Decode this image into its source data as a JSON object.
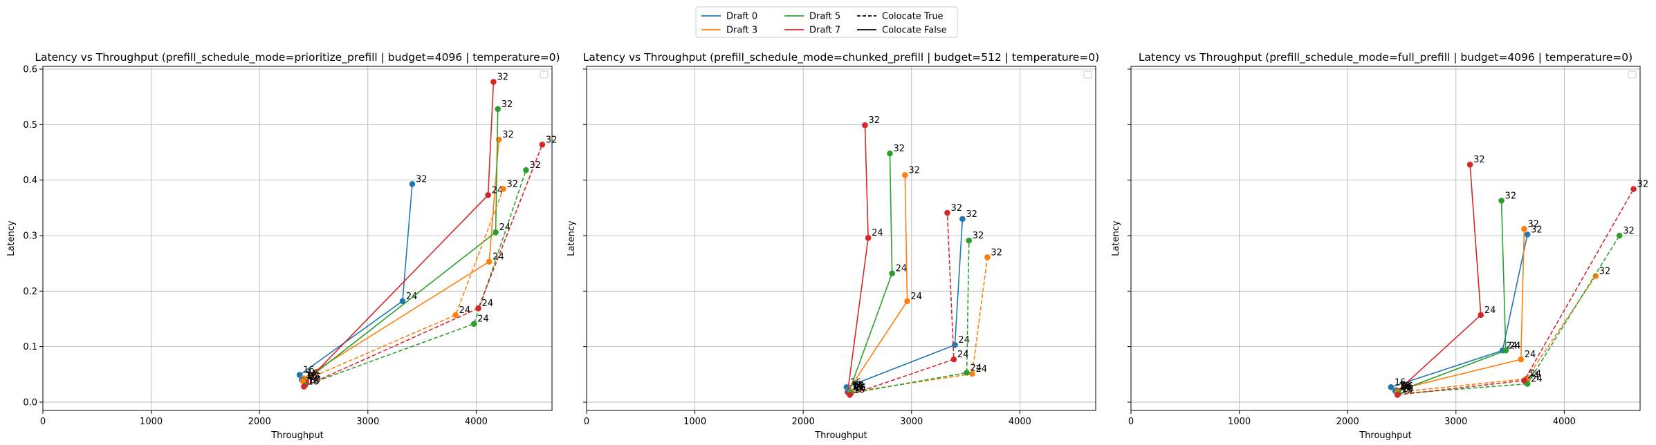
{
  "legend": {
    "position": "upper center",
    "entries": [
      {
        "label": "Draft 0",
        "color": "#1f77b4",
        "style": "solid"
      },
      {
        "label": "Draft 3",
        "color": "#ff7f0e",
        "style": "solid"
      },
      {
        "label": "Draft 5",
        "color": "#2ca02c",
        "style": "solid"
      },
      {
        "label": "Draft 7",
        "color": "#d62728",
        "style": "solid"
      },
      {
        "label": "Colocate True",
        "color": "#000000",
        "style": "dashed"
      },
      {
        "label": "Colocate False",
        "color": "#000000",
        "style": "solid"
      }
    ]
  },
  "colors": {
    "draft_0": "#1f77b4",
    "draft_3": "#ff7f0e",
    "draft_5": "#2ca02c",
    "draft_7": "#d62728",
    "grid": "#b0b0b0"
  },
  "chart_data": [
    {
      "type": "line",
      "title": "Latency vs Throughput (prefill_schedule_mode=prioritize_prefill | budget=4096 | temperature=0)",
      "xlabel": "Throughput",
      "ylabel": "Latency",
      "xlim": [
        0,
        4700
      ],
      "ylim": [
        -0.015,
        0.605
      ],
      "xticks": [
        "0",
        "1000",
        "2000",
        "3000",
        "4000"
      ],
      "yticks": [
        "0.0",
        "0.1",
        "0.2",
        "0.3",
        "0.4",
        "0.5",
        "0.6"
      ],
      "grid": true,
      "series": [
        {
          "draft": 0,
          "colocate": false,
          "x": [
            2370,
            3320,
            3410
          ],
          "y": [
            0.049,
            0.182,
            0.393
          ],
          "labels": [
            "16",
            "24",
            "32"
          ]
        },
        {
          "draft": 3,
          "colocate": false,
          "x": [
            2405,
            4120,
            4210
          ],
          "y": [
            0.043,
            0.253,
            0.473
          ],
          "labels": [
            "16",
            "24",
            "32"
          ]
        },
        {
          "draft": 5,
          "colocate": false,
          "x": [
            2420,
            4180,
            4200
          ],
          "y": [
            0.038,
            0.306,
            0.528
          ],
          "labels": [
            "16",
            "24",
            "32"
          ]
        },
        {
          "draft": 7,
          "colocate": false,
          "x": [
            2430,
            4110,
            4160
          ],
          "y": [
            0.036,
            0.373,
            0.577
          ],
          "labels": [
            "16",
            "24",
            "32"
          ]
        },
        {
          "draft": 0,
          "colocate": true,
          "x": [
            2390
          ],
          "y": [
            0.04
          ],
          "labels": [
            "16"
          ]
        },
        {
          "draft": 3,
          "colocate": true,
          "x": [
            2400,
            3810,
            4250
          ],
          "y": [
            0.038,
            0.157,
            0.384
          ],
          "labels": [
            "16",
            "24",
            "32"
          ]
        },
        {
          "draft": 5,
          "colocate": true,
          "x": [
            2420,
            3980,
            4460
          ],
          "y": [
            0.03,
            0.141,
            0.418
          ],
          "labels": [
            "16",
            "24",
            "32"
          ]
        },
        {
          "draft": 7,
          "colocate": true,
          "x": [
            2410,
            4020,
            4610
          ],
          "y": [
            0.028,
            0.169,
            0.464
          ],
          "labels": [
            "16",
            "24",
            "32"
          ]
        }
      ]
    },
    {
      "type": "line",
      "title": "Latency vs Throughput (prefill_schedule_mode=chunked_prefill | budget=512 | temperature=0)",
      "xlabel": "Throughput",
      "ylabel": "Latency",
      "xlim": [
        0,
        4700
      ],
      "ylim": [
        -0.015,
        0.605
      ],
      "xticks": [
        "0",
        "1000",
        "2000",
        "3000",
        "4000"
      ],
      "yticks": [
        "0.0",
        "0.1",
        "0.2",
        "0.3",
        "0.4",
        "0.5",
        "0.6"
      ],
      "grid": true,
      "series": [
        {
          "draft": 0,
          "colocate": false,
          "x": [
            2400,
            3400,
            3470
          ],
          "y": [
            0.027,
            0.103,
            0.33
          ],
          "labels": [
            "16",
            "24",
            "32"
          ]
        },
        {
          "draft": 3,
          "colocate": false,
          "x": [
            2420,
            2960,
            2940
          ],
          "y": [
            0.022,
            0.182,
            0.409
          ],
          "labels": [
            "16",
            "24",
            "32"
          ]
        },
        {
          "draft": 5,
          "colocate": false,
          "x": [
            2425,
            2820,
            2800
          ],
          "y": [
            0.02,
            0.232,
            0.448
          ],
          "labels": [
            "16",
            "24",
            "32"
          ]
        },
        {
          "draft": 7,
          "colocate": false,
          "x": [
            2410,
            2600,
            2570
          ],
          "y": [
            0.018,
            0.296,
            0.499
          ],
          "labels": [
            "16",
            "24",
            "32"
          ]
        },
        {
          "draft": 0,
          "colocate": true,
          "x": [
            2420
          ],
          "y": [
            0.02
          ],
          "labels": [
            "16"
          ]
        },
        {
          "draft": 3,
          "colocate": true,
          "x": [
            2440,
            3560,
            3700
          ],
          "y": [
            0.018,
            0.051,
            0.261
          ],
          "labels": [
            "16",
            "24",
            "32"
          ]
        },
        {
          "draft": 5,
          "colocate": true,
          "x": [
            2440,
            3510,
            3530
          ],
          "y": [
            0.016,
            0.053,
            0.291
          ],
          "labels": [
            "16",
            "24",
            "32"
          ]
        },
        {
          "draft": 7,
          "colocate": true,
          "x": [
            2430,
            3390,
            3330
          ],
          "y": [
            0.013,
            0.077,
            0.341
          ],
          "labels": [
            "16",
            "24",
            "32"
          ]
        }
      ]
    },
    {
      "type": "line",
      "title": "Latency vs Throughput (prefill_schedule_mode=full_prefill | budget=4096 | temperature=0)",
      "xlabel": "Throughput",
      "ylabel": "Latency",
      "xlim": [
        0,
        4700
      ],
      "ylim": [
        -0.015,
        0.605
      ],
      "xticks": [
        "0",
        "1000",
        "2000",
        "3000",
        "4000"
      ],
      "yticks": [
        "0.0",
        "0.1",
        "0.2",
        "0.3",
        "0.4",
        "0.5",
        "0.6"
      ],
      "grid": true,
      "series": [
        {
          "draft": 0,
          "colocate": false,
          "x": [
            2400,
            3430,
            3660
          ],
          "y": [
            0.027,
            0.093,
            0.302
          ],
          "labels": [
            "16",
            "24",
            "32"
          ]
        },
        {
          "draft": 3,
          "colocate": false,
          "x": [
            2450,
            3600,
            3630
          ],
          "y": [
            0.022,
            0.077,
            0.312
          ],
          "labels": [
            "16",
            "24",
            "32"
          ]
        },
        {
          "draft": 5,
          "colocate": false,
          "x": [
            2470,
            3460,
            3420
          ],
          "y": [
            0.02,
            0.093,
            0.363
          ],
          "labels": [
            "16",
            "24",
            "32"
          ]
        },
        {
          "draft": 7,
          "colocate": false,
          "x": [
            2450,
            3230,
            3130
          ],
          "y": [
            0.018,
            0.157,
            0.428
          ],
          "labels": [
            "16",
            "24",
            "32"
          ]
        },
        {
          "draft": 0,
          "colocate": true,
          "x": [
            2440
          ],
          "y": [
            0.02
          ],
          "labels": [
            "16"
          ]
        },
        {
          "draft": 3,
          "colocate": true,
          "x": [
            2460,
            3650,
            4290
          ],
          "y": [
            0.018,
            0.042,
            0.227
          ],
          "labels": [
            "16",
            "24",
            "32"
          ]
        },
        {
          "draft": 5,
          "colocate": true,
          "x": [
            2470,
            3660,
            4510
          ],
          "y": [
            0.015,
            0.033,
            0.3
          ],
          "labels": [
            "16",
            "24",
            "32"
          ]
        },
        {
          "draft": 7,
          "colocate": true,
          "x": [
            2460,
            3630,
            4640
          ],
          "y": [
            0.013,
            0.039,
            0.384
          ],
          "labels": [
            "16",
            "24",
            "32"
          ]
        }
      ]
    }
  ]
}
